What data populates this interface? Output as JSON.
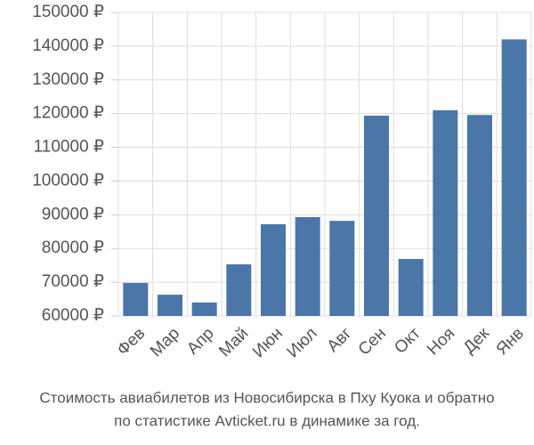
{
  "chart_data": {
    "type": "bar",
    "title_lines": [
      "Стоимость авиабилетов из Новосибирска в Пху Куока и обратно",
      "по статистике Avticket.ru в динамике за год."
    ],
    "categories": [
      "Фев",
      "Мар",
      "Апр",
      "Май",
      "Июн",
      "Июл",
      "Авг",
      "Сен",
      "Окт",
      "Ноя",
      "Дек",
      "Янв"
    ],
    "values": [
      69800,
      66300,
      64000,
      75300,
      87200,
      89300,
      88200,
      119400,
      76900,
      121000,
      119600,
      142000
    ],
    "color": "#4a76a8",
    "ylim": [
      60000,
      150000
    ],
    "yticks": [
      {
        "value": 60000,
        "label": "60000 ₽"
      },
      {
        "value": 70000,
        "label": "70000 ₽"
      },
      {
        "value": 80000,
        "label": "80000 ₽"
      },
      {
        "value": 90000,
        "label": "90000 ₽"
      },
      {
        "value": 100000,
        "label": "100000 ₽"
      },
      {
        "value": 110000,
        "label": "110000 ₽"
      },
      {
        "value": 120000,
        "label": "120000 ₽"
      },
      {
        "value": 130000,
        "label": "130000 ₽"
      },
      {
        "value": 140000,
        "label": "140000 ₽"
      },
      {
        "value": 150000,
        "label": "150000 ₽"
      }
    ],
    "grid": true
  }
}
